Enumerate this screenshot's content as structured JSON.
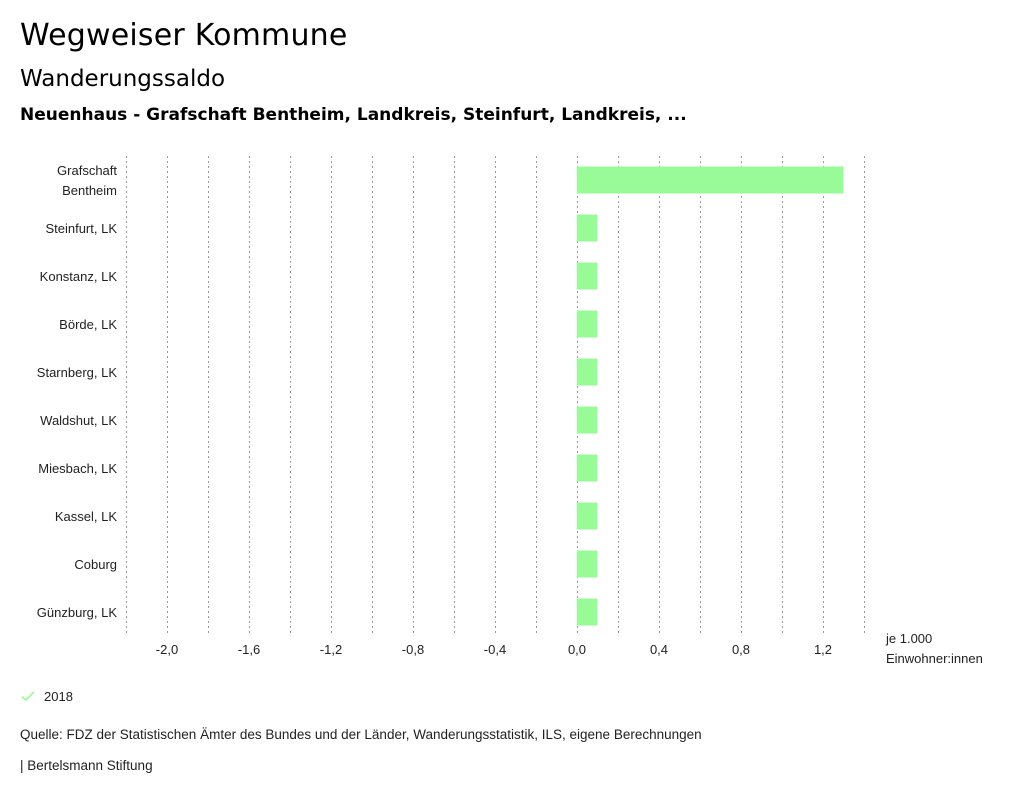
{
  "header": {
    "title": "Wegweiser Kommune",
    "subtitle": "Wanderungssaldo",
    "regions": "Neuenhaus - Grafschaft Bentheim, Landkreis, Steinfurt, Landkreis, ..."
  },
  "unit_label": [
    "je 1.000",
    "Einwohner:innen"
  ],
  "legend": {
    "label": "2018",
    "color": "#98fb98",
    "icon": "check-icon"
  },
  "footer": {
    "source": "Quelle: FDZ der Statistischen Ämter des Bundes und der Länder, Wanderungsstatistik, ILS, eigene Berechnungen",
    "credit": "| Bertelsmann Stiftung"
  },
  "chart_data": {
    "type": "bar",
    "orientation": "horizontal",
    "categories": [
      [
        "Grafschaft",
        "Bentheim"
      ],
      [
        "Steinfurt, LK"
      ],
      [
        "Konstanz, LK"
      ],
      [
        "Börde, LK"
      ],
      [
        "Starnberg, LK"
      ],
      [
        "Waldshut, LK"
      ],
      [
        "Miesbach, LK"
      ],
      [
        "Kassel, LK"
      ],
      [
        "Coburg"
      ],
      [
        "Günzburg, LK"
      ]
    ],
    "series": [
      {
        "name": "2018",
        "color": "#98fb98",
        "values": [
          1.3,
          0.1,
          0.1,
          0.1,
          0.1,
          0.1,
          0.1,
          0.1,
          0.1,
          0.1
        ]
      }
    ],
    "xlim": [
      -2.2,
      1.4
    ],
    "xticks": [
      "-2,0",
      "-1,6",
      "-1,2",
      "-0,8",
      "-0,4",
      "0,0",
      "0,4",
      "0,8",
      "1,2"
    ],
    "xtick_values": [
      -2.0,
      -1.6,
      -1.2,
      -0.8,
      -0.4,
      0.0,
      0.4,
      0.8,
      1.2
    ],
    "grid": true,
    "grid_style": "dotted"
  }
}
